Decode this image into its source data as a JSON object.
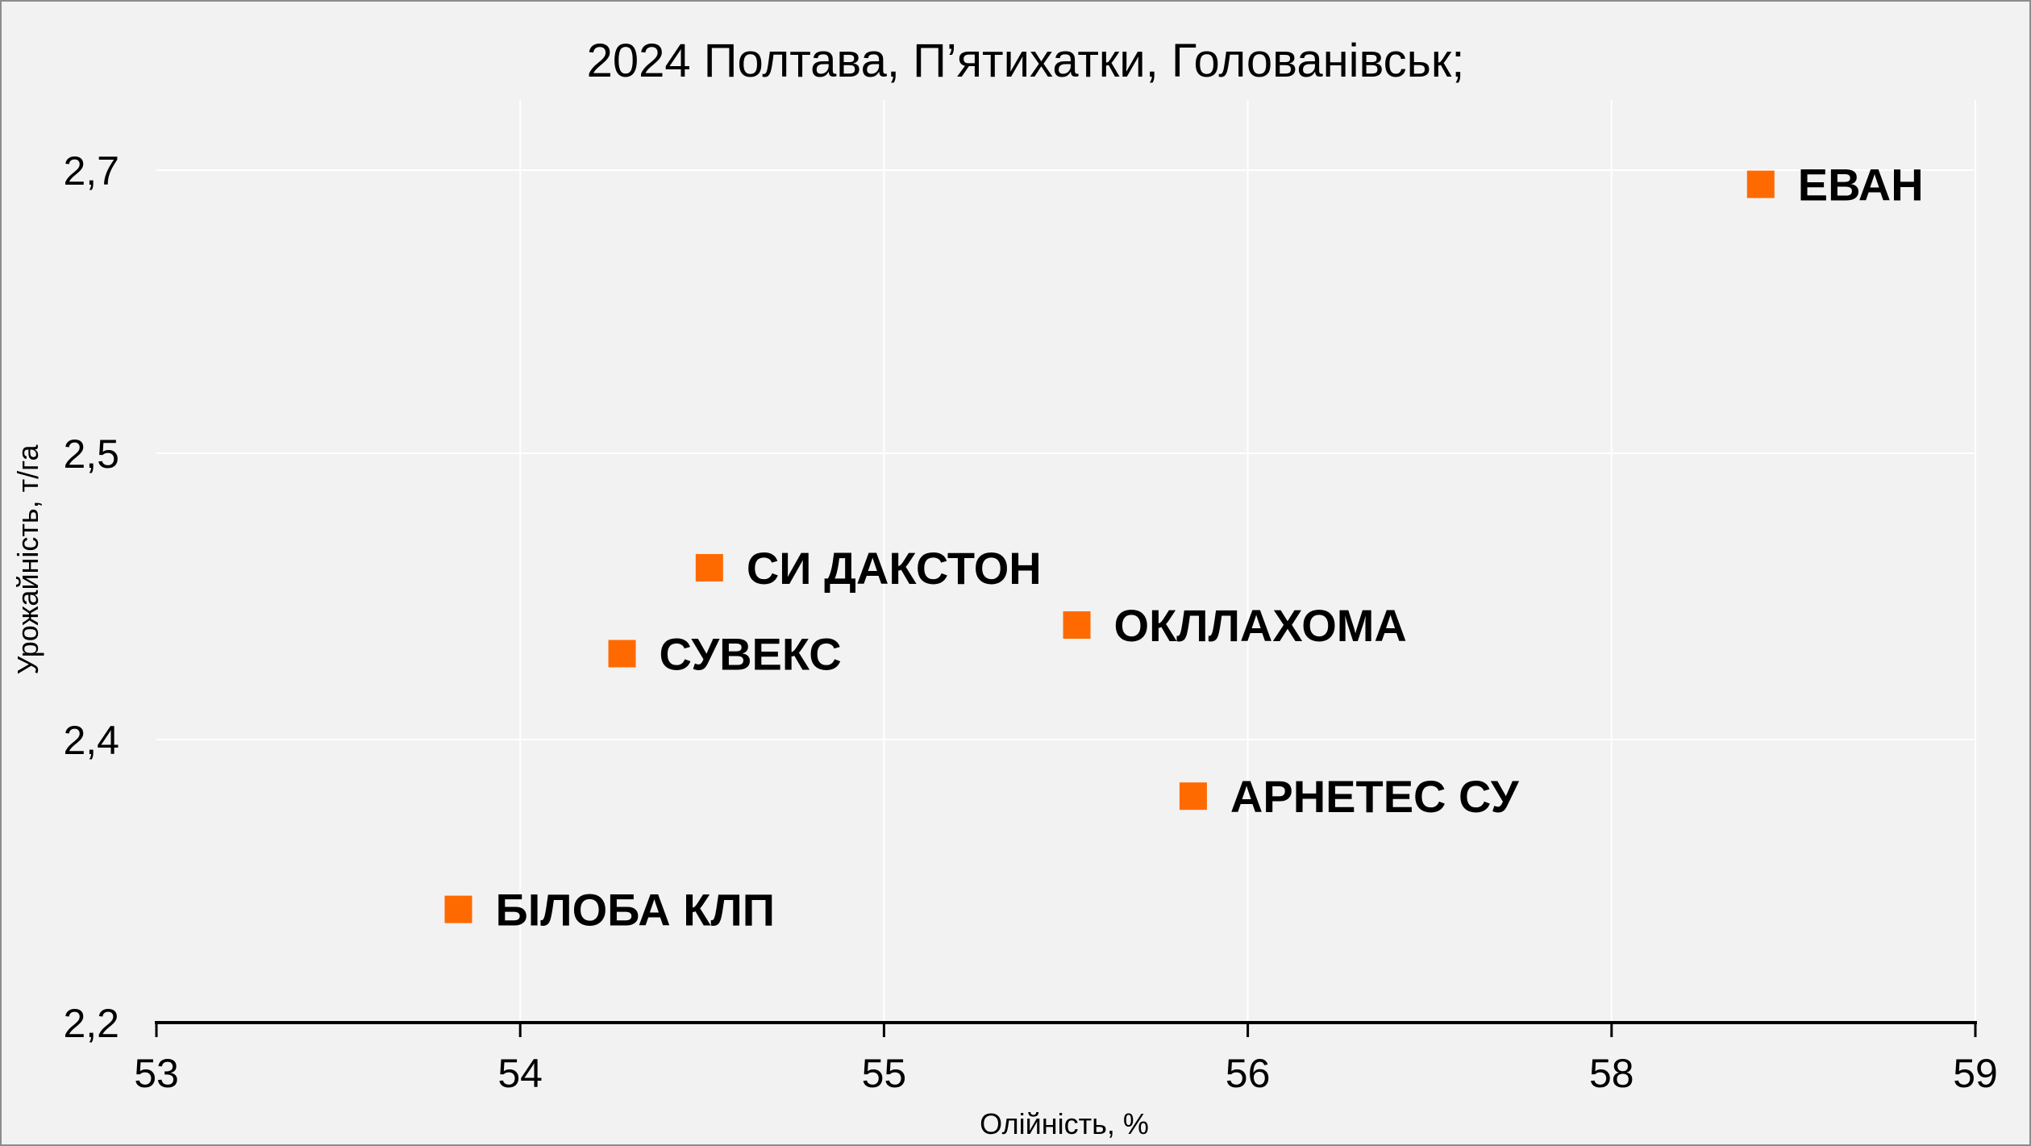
{
  "chart_data": {
    "type": "scatter",
    "title": "2024 Полтава, П’ятихатки, Голованівськ;",
    "xlabel": "Олійність, %",
    "ylabel": "Урожайність, т/га",
    "x_ticks": [
      "53",
      "54",
      "55",
      "56",
      "58",
      "59"
    ],
    "y_ticks": [
      "2,2",
      "2,4",
      "2,5",
      "2,7"
    ],
    "grid": true,
    "legend": "none",
    "marker_color": "#ff6a00",
    "points": [
      {
        "label": "ЕВАН",
        "x": 58.41,
        "y": 2.69
      },
      {
        "label": "СИ ДАКСТОН",
        "x": 54.52,
        "y": 2.46
      },
      {
        "label": "ОКЛЛАХОМА",
        "x": 55.53,
        "y": 2.44
      },
      {
        "label": "СУВЕКС",
        "x": 54.28,
        "y": 2.43
      },
      {
        "label": "АРНЕТЕС СУ",
        "x": 55.85,
        "y": 2.36
      },
      {
        "label": "БІЛОБА КЛП",
        "x": 53.83,
        "y": 2.28
      }
    ]
  }
}
